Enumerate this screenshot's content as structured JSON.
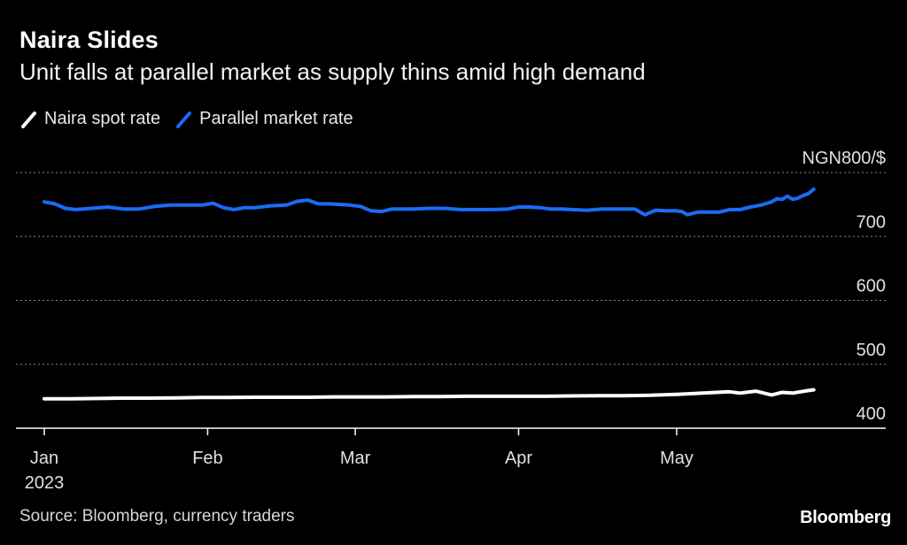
{
  "header": {
    "title": "Naira Slides",
    "subtitle": "Unit falls at parallel market as supply thins amid high demand"
  },
  "legend": {
    "items": [
      {
        "label": "Naira spot rate",
        "color": "#ffffff"
      },
      {
        "label": "Parallel market rate",
        "color": "#1a6cf6"
      }
    ]
  },
  "footer": {
    "source": "Source: Bloomberg, currency traders",
    "brand": "Bloomberg"
  },
  "chart_data": {
    "type": "line",
    "title": "Naira Slides",
    "subtitle": "Unit falls at parallel market as supply thins amid high demand",
    "xlabel": "",
    "ylabel": "",
    "unit_label": "NGN800/$",
    "ylim": [
      400,
      800
    ],
    "yticks": [
      {
        "value": 800,
        "label": "NGN800/$"
      },
      {
        "value": 700,
        "label": "700"
      },
      {
        "value": 600,
        "label": "600"
      },
      {
        "value": 500,
        "label": "500"
      },
      {
        "value": 400,
        "label": "400"
      }
    ],
    "x_range_days": [
      0,
      150
    ],
    "xticks": [
      {
        "day": 0,
        "label": "Jan",
        "sublabel": "2023"
      },
      {
        "day": 31,
        "label": "Feb",
        "sublabel": ""
      },
      {
        "day": 59,
        "label": "Mar",
        "sublabel": ""
      },
      {
        "day": 90,
        "label": "Apr",
        "sublabel": ""
      },
      {
        "day": 120,
        "label": "May",
        "sublabel": ""
      }
    ],
    "grid": true,
    "legend_position": "top-left",
    "series": [
      {
        "name": "Naira spot rate",
        "color": "#ffffff",
        "x": [
          0,
          5,
          10,
          15,
          20,
          25,
          30,
          35,
          40,
          45,
          50,
          55,
          60,
          65,
          70,
          75,
          80,
          85,
          90,
          95,
          100,
          105,
          110,
          115,
          120,
          125,
          130,
          132,
          135,
          138,
          140,
          142,
          145,
          146
        ],
        "y": [
          446,
          446,
          446.5,
          447,
          447,
          447.5,
          448,
          448,
          448.5,
          448.5,
          448.5,
          449,
          449,
          449,
          449.5,
          449.5,
          450,
          450,
          450,
          450,
          450.5,
          451,
          451,
          451.5,
          453,
          455,
          457,
          455,
          458,
          452,
          456,
          455,
          459,
          460
        ]
      },
      {
        "name": "Parallel market rate",
        "color": "#1a6cf6",
        "x": [
          0,
          2,
          4,
          6,
          9,
          12,
          15,
          18,
          21,
          24,
          27,
          30,
          32,
          34,
          36,
          38,
          40,
          43,
          46,
          48,
          50,
          52,
          54,
          56,
          58,
          60,
          62,
          64,
          66,
          68,
          70,
          73,
          76,
          79,
          82,
          85,
          88,
          90,
          92,
          94,
          96,
          98,
          100,
          103,
          106,
          109,
          112,
          114,
          116,
          118,
          120,
          121,
          122,
          124,
          126,
          128,
          130,
          132,
          134,
          136,
          138,
          139,
          140,
          141,
          142,
          143,
          144,
          145,
          146
        ],
        "y": [
          754,
          751,
          744,
          742,
          744,
          746,
          743,
          743,
          747,
          749,
          749,
          749,
          752,
          745,
          742,
          745,
          745,
          748,
          749,
          755,
          757,
          751,
          751,
          750,
          749,
          747,
          740,
          739,
          743,
          743,
          743,
          744,
          744,
          742,
          742,
          742,
          743,
          746,
          746,
          745,
          743,
          743,
          742,
          741,
          743,
          743,
          743,
          734,
          741,
          740,
          740,
          739,
          734,
          738,
          738,
          738,
          742,
          742,
          746,
          749,
          754,
          759,
          758,
          763,
          758,
          760,
          764,
          767,
          774
        ]
      }
    ]
  }
}
